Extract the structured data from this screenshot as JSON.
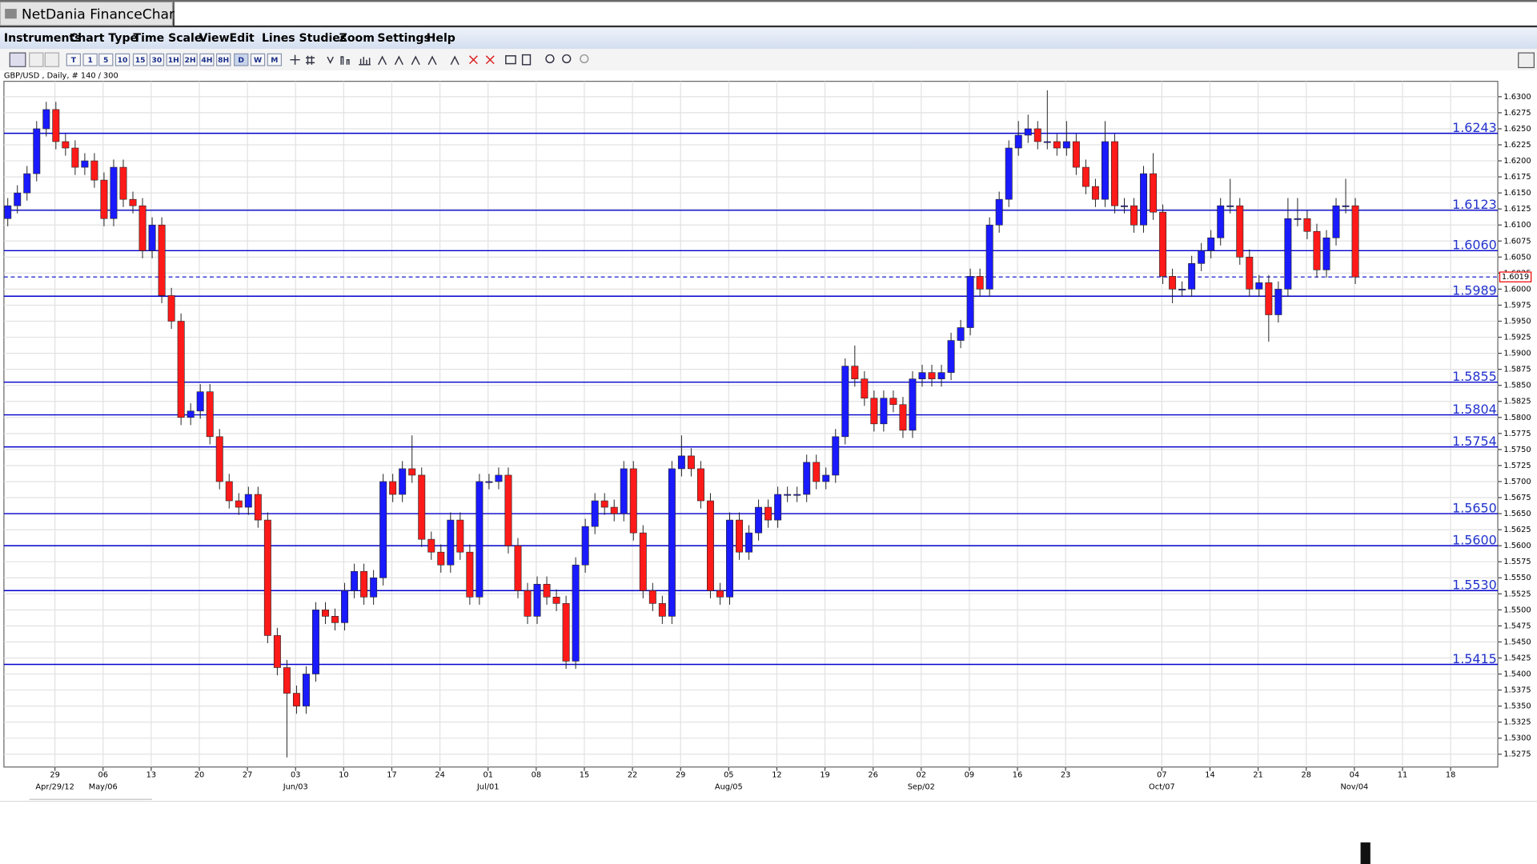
{
  "header": {
    "title": "NetDania FinanceChart"
  },
  "menu": [
    "Instruments",
    "Chart Type",
    "Time Scale",
    "View",
    "Edit",
    "Lines",
    "Studies",
    "Zoom",
    "Settings",
    "Help"
  ],
  "toolbar": {
    "buttons": [
      "T",
      "1",
      "5",
      "10",
      "15",
      "30",
      "1H",
      "2H",
      "4H",
      "8H",
      "D",
      "W",
      "M"
    ]
  },
  "chart_data": {
    "type": "candlestick",
    "subtitle": "GBP/USD , Daily, # 140 / 300",
    "up_color": "#1a1aff",
    "down_color": "#ff1a1a",
    "line_color": "#0000cc",
    "grid": true,
    "x": [
      0,
      1,
      2,
      3,
      4,
      5,
      6,
      7,
      8,
      9,
      10,
      11,
      12,
      13,
      14,
      15,
      16,
      17,
      18,
      19,
      20,
      21,
      22,
      23,
      24,
      25,
      26,
      27,
      28,
      29,
      30,
      31,
      32,
      33,
      34,
      35,
      36,
      37,
      38,
      39,
      40,
      41,
      42,
      43,
      44,
      45,
      46,
      47,
      48,
      49,
      50,
      51,
      52,
      53,
      54,
      55,
      56,
      57,
      58,
      59,
      60,
      61,
      62,
      63,
      64,
      65,
      66,
      67,
      68,
      69,
      70,
      71,
      72,
      73,
      74,
      75,
      76,
      77,
      78,
      79,
      80,
      81,
      82,
      83,
      84,
      85,
      86,
      87,
      88,
      89,
      90,
      91,
      92,
      93,
      94,
      95,
      96,
      97,
      98,
      99,
      100,
      101,
      102,
      103,
      104,
      105,
      106,
      107,
      108,
      109,
      110,
      111,
      112,
      113,
      114,
      115,
      116,
      117,
      118,
      119,
      120,
      121,
      122,
      123,
      124,
      125,
      126,
      127,
      128,
      129,
      130,
      131,
      132,
      133,
      134,
      135,
      136,
      137,
      138,
      139,
      140
    ],
    "open": [
      1.611,
      1.613,
      1.615,
      1.618,
      1.625,
      1.628,
      1.623,
      1.622,
      1.619,
      1.62,
      1.617,
      1.611,
      1.619,
      1.614,
      1.613,
      1.606,
      1.61,
      1.599,
      1.595,
      1.58,
      1.581,
      1.584,
      1.577,
      1.57,
      1.567,
      1.566,
      1.568,
      1.564,
      1.546,
      1.541,
      1.537,
      1.535,
      1.54,
      1.55,
      1.549,
      1.548,
      1.553,
      1.556,
      1.552,
      1.555,
      1.57,
      1.568,
      1.572,
      1.571,
      1.561,
      1.559,
      1.557,
      1.564,
      1.559,
      1.552,
      1.57,
      1.57,
      1.571,
      1.56,
      1.553,
      1.549,
      1.554,
      1.552,
      1.551,
      1.542,
      1.557,
      1.563,
      1.567,
      1.566,
      1.565,
      1.572,
      1.562,
      1.553,
      1.551,
      1.549,
      1.572,
      1.574,
      1.572,
      1.567,
      1.553,
      1.552,
      1.564,
      1.559,
      1.562,
      1.566,
      1.564,
      1.568,
      1.568,
      1.568,
      1.573,
      1.57,
      1.571,
      1.577,
      1.588,
      1.586,
      1.583,
      1.579,
      1.583,
      1.582,
      1.578,
      1.586,
      1.587,
      1.586,
      1.587,
      1.592,
      1.594,
      1.602,
      1.6,
      1.61,
      1.614,
      1.622,
      1.624,
      1.625,
      1.623,
      1.623,
      1.622,
      1.623,
      1.619,
      1.616,
      1.614,
      1.623,
      1.613,
      1.613,
      1.61,
      1.618,
      1.612,
      1.602,
      1.6,
      1.6,
      1.604,
      1.606,
      1.608,
      1.613,
      1.613,
      1.605,
      1.6,
      1.601,
      1.596,
      1.6,
      1.611,
      1.611,
      1.609,
      1.603,
      1.608,
      1.613,
      1.613
    ],
    "high": [
      1.6142,
      1.6162,
      1.6192,
      1.6262,
      1.6292,
      1.6292,
      1.6242,
      1.6232,
      1.6212,
      1.6212,
      1.6182,
      1.6202,
      1.6202,
      1.6152,
      1.6142,
      1.6112,
      1.6112,
      1.6002,
      1.5962,
      1.5822,
      1.5852,
      1.5852,
      1.5782,
      1.5712,
      1.5682,
      1.5692,
      1.5692,
      1.5652,
      1.5472,
      1.5422,
      1.5382,
      1.5412,
      1.5512,
      1.5512,
      1.5502,
      1.5542,
      1.5572,
      1.5572,
      1.5562,
      1.5712,
      1.5712,
      1.5732,
      1.5772,
      1.5722,
      1.5622,
      1.5602,
      1.5652,
      1.5652,
      1.5602,
      1.5712,
      1.5712,
      1.5722,
      1.5722,
      1.5612,
      1.5542,
      1.5552,
      1.5552,
      1.5532,
      1.5522,
      1.5582,
      1.5642,
      1.5682,
      1.5682,
      1.5672,
      1.5732,
      1.5732,
      1.5632,
      1.5542,
      1.5522,
      1.5732,
      1.5772,
      1.5752,
      1.5732,
      1.5682,
      1.5542,
      1.5652,
      1.5652,
      1.5632,
      1.5672,
      1.5672,
      1.5692,
      1.5692,
      1.5692,
      1.5742,
      1.5742,
      1.5722,
      1.5782,
      1.5892,
      1.5912,
      1.5872,
      1.5842,
      1.5842,
      1.5842,
      1.5832,
      1.5872,
      1.5882,
      1.5882,
      1.5882,
      1.5932,
      1.5952,
      1.6032,
      1.6032,
      1.6112,
      1.6152,
      1.6232,
      1.6262,
      1.6272,
      1.6262,
      1.631,
      1.6242,
      1.6262,
      1.6242,
      1.6202,
      1.6172,
      1.6262,
      1.6242,
      1.6142,
      1.6142,
      1.6192,
      1.6212,
      1.6132,
      1.6032,
      1.6012,
      1.6052,
      1.6072,
      1.6092,
      1.6142,
      1.6172,
      1.6142,
      1.6062,
      1.6022,
      1.6022,
      1.6012,
      1.6142,
      1.6142,
      1.6122,
      1.6102,
      1.6092,
      1.6142,
      1.6172,
      1.6142
    ],
    "low": [
      1.6098,
      1.6118,
      1.6138,
      1.6168,
      1.6238,
      1.6218,
      1.6208,
      1.6178,
      1.6178,
      1.6158,
      1.6098,
      1.6098,
      1.6128,
      1.6118,
      1.6048,
      1.6048,
      1.5978,
      1.5938,
      1.5788,
      1.5788,
      1.5798,
      1.5758,
      1.5688,
      1.5658,
      1.5648,
      1.5648,
      1.5628,
      1.5448,
      1.5398,
      1.527,
      1.5338,
      1.5338,
      1.5388,
      1.5478,
      1.5468,
      1.5468,
      1.5518,
      1.5508,
      1.5508,
      1.5538,
      1.5668,
      1.5668,
      1.5698,
      1.5598,
      1.5578,
      1.5558,
      1.5558,
      1.5578,
      1.5508,
      1.5508,
      1.5688,
      1.5688,
      1.5588,
      1.5518,
      1.5478,
      1.5478,
      1.5508,
      1.5498,
      1.5408,
      1.5408,
      1.5558,
      1.5618,
      1.5648,
      1.5638,
      1.5638,
      1.5608,
      1.5518,
      1.5498,
      1.5478,
      1.5478,
      1.5708,
      1.5708,
      1.5658,
      1.5518,
      1.5508,
      1.5508,
      1.5578,
      1.5578,
      1.5608,
      1.5628,
      1.5628,
      1.5668,
      1.5668,
      1.5668,
      1.5688,
      1.5688,
      1.5698,
      1.5758,
      1.5848,
      1.5818,
      1.5778,
      1.5778,
      1.5808,
      1.5768,
      1.5768,
      1.5848,
      1.5848,
      1.5848,
      1.5858,
      1.5908,
      1.5928,
      1.5988,
      1.5988,
      1.6088,
      1.6128,
      1.6208,
      1.6228,
      1.6218,
      1.6218,
      1.6208,
      1.6208,
      1.6178,
      1.6148,
      1.6128,
      1.6128,
      1.6118,
      1.6118,
      1.6088,
      1.6088,
      1.6108,
      1.6008,
      1.5978,
      1.5988,
      1.5988,
      1.6028,
      1.6048,
      1.6068,
      1.6118,
      1.6038,
      1.5988,
      1.5988,
      1.5918,
      1.5948,
      1.5988,
      1.6098,
      1.6078,
      1.6018,
      1.6018,
      1.6068,
      1.6118,
      1.6008
    ],
    "close": [
      1.613,
      1.615,
      1.618,
      1.625,
      1.628,
      1.623,
      1.622,
      1.619,
      1.62,
      1.617,
      1.611,
      1.619,
      1.614,
      1.613,
      1.606,
      1.61,
      1.599,
      1.595,
      1.58,
      1.581,
      1.584,
      1.577,
      1.57,
      1.567,
      1.566,
      1.568,
      1.564,
      1.546,
      1.541,
      1.537,
      1.535,
      1.54,
      1.55,
      1.549,
      1.548,
      1.553,
      1.556,
      1.552,
      1.555,
      1.57,
      1.568,
      1.572,
      1.571,
      1.561,
      1.559,
      1.557,
      1.564,
      1.559,
      1.552,
      1.57,
      1.57,
      1.571,
      1.56,
      1.553,
      1.549,
      1.554,
      1.552,
      1.551,
      1.542,
      1.557,
      1.563,
      1.567,
      1.566,
      1.565,
      1.572,
      1.562,
      1.553,
      1.551,
      1.549,
      1.572,
      1.574,
      1.572,
      1.567,
      1.553,
      1.552,
      1.564,
      1.559,
      1.562,
      1.566,
      1.564,
      1.568,
      1.568,
      1.568,
      1.573,
      1.57,
      1.571,
      1.577,
      1.588,
      1.586,
      1.583,
      1.579,
      1.583,
      1.582,
      1.578,
      1.586,
      1.587,
      1.586,
      1.587,
      1.592,
      1.594,
      1.602,
      1.6,
      1.61,
      1.614,
      1.622,
      1.624,
      1.625,
      1.623,
      1.623,
      1.622,
      1.623,
      1.619,
      1.616,
      1.614,
      1.623,
      1.613,
      1.613,
      1.61,
      1.618,
      1.612,
      1.602,
      1.6,
      1.6,
      1.604,
      1.606,
      1.608,
      1.613,
      1.613,
      1.605,
      1.6,
      1.601,
      1.596,
      1.6,
      1.611,
      1.611,
      1.609,
      1.603,
      1.608,
      1.613,
      1.613,
      1.6019
    ],
    "xlim": [
      -0.4,
      154.8
    ],
    "xticks": [
      {
        "value": 4.9,
        "label": "29"
      },
      {
        "value": 9.9,
        "label": "06"
      },
      {
        "value": 14.9,
        "label": "13"
      },
      {
        "value": 19.9,
        "label": "20"
      },
      {
        "value": 24.9,
        "label": "27"
      },
      {
        "value": 29.9,
        "label": "03"
      },
      {
        "value": 34.9,
        "label": "10"
      },
      {
        "value": 39.9,
        "label": "17"
      },
      {
        "value": 44.9,
        "label": "24"
      },
      {
        "value": 49.9,
        "label": "01"
      },
      {
        "value": 54.9,
        "label": "08"
      },
      {
        "value": 59.9,
        "label": "15"
      },
      {
        "value": 64.9,
        "label": "22"
      },
      {
        "value": 69.9,
        "label": "29"
      },
      {
        "value": 74.9,
        "label": "05"
      },
      {
        "value": 79.9,
        "label": "12"
      },
      {
        "value": 84.9,
        "label": "19"
      },
      {
        "value": 89.9,
        "label": "26"
      },
      {
        "value": 94.9,
        "label": "02"
      },
      {
        "value": 99.9,
        "label": "09"
      },
      {
        "value": 104.9,
        "label": "16"
      },
      {
        "value": 109.9,
        "label": "23"
      },
      {
        "value": 119.9,
        "label": "07"
      },
      {
        "value": 124.9,
        "label": "14"
      },
      {
        "value": 129.9,
        "label": "21"
      },
      {
        "value": 134.9,
        "label": "28"
      },
      {
        "value": 139.9,
        "label": "04"
      },
      {
        "value": 144.9,
        "label": "11"
      },
      {
        "value": 149.9,
        "label": "18"
      }
    ],
    "xticks_month": [
      {
        "value": 4.9,
        "label": "Apr/29/12"
      },
      {
        "value": 9.9,
        "label": "May/06"
      },
      {
        "value": 29.9,
        "label": "Jun/03"
      },
      {
        "value": 49.9,
        "label": "Jul/01"
      },
      {
        "value": 74.9,
        "label": "Aug/05"
      },
      {
        "value": 94.9,
        "label": "Sep/02"
      },
      {
        "value": 119.9,
        "label": "Oct/07"
      },
      {
        "value": 139.9,
        "label": "Nov/04"
      }
    ],
    "ylim": [
      1.5255,
      1.6324
    ],
    "yticks": [
      {
        "value": 1.63,
        "label": "1.6300"
      },
      1.6275,
      {
        "value": 1.625,
        "label": "1.6250"
      },
      1.6225,
      {
        "value": 1.62,
        "label": "1.6200"
      },
      1.6175,
      {
        "value": 1.615,
        "label": "1.6150"
      },
      1.6125,
      {
        "value": 1.61,
        "label": "1.6100"
      },
      1.6075,
      {
        "value": 1.605,
        "label": "1.6050"
      },
      1.6025,
      {
        "value": 1.6,
        "label": "1.6000"
      },
      1.5975,
      {
        "value": 1.595,
        "label": "1.5950"
      },
      1.5925,
      {
        "value": 1.59,
        "label": "1.5900"
      },
      1.5875,
      {
        "value": 1.585,
        "label": "1.5850"
      },
      1.5825,
      {
        "value": 1.58,
        "label": "1.5800"
      },
      1.5775,
      {
        "value": 1.575,
        "label": "1.5750"
      },
      1.5725,
      {
        "value": 1.57,
        "label": "1.5700"
      },
      1.5675,
      {
        "value": 1.565,
        "label": "1.5650"
      },
      1.5625,
      {
        "value": 1.56,
        "label": "1.5600"
      },
      1.5575,
      {
        "value": 1.555,
        "label": "1.5550"
      },
      1.5525,
      {
        "value": 1.55,
        "label": "1.5500"
      },
      1.5475,
      {
        "value": 1.545,
        "label": "1.5450"
      },
      1.5425,
      {
        "value": 1.54,
        "label": "1.5400"
      },
      1.5375,
      {
        "value": 1.535,
        "label": "1.5350"
      },
      1.5325,
      {
        "value": 1.53,
        "label": "1.5300"
      },
      1.5275
    ],
    "levels": [
      1.6243,
      1.6123,
      {
        "value": 1.606,
        "label": "1.6060"
      },
      1.5989,
      1.5855,
      1.5804,
      1.5754,
      {
        "value": 1.565,
        "label": "1.5650"
      },
      {
        "value": 1.56,
        "label": "1.5600"
      },
      {
        "value": 1.553,
        "label": "1.5530"
      },
      1.5415
    ],
    "last_price": 1.6019
  }
}
